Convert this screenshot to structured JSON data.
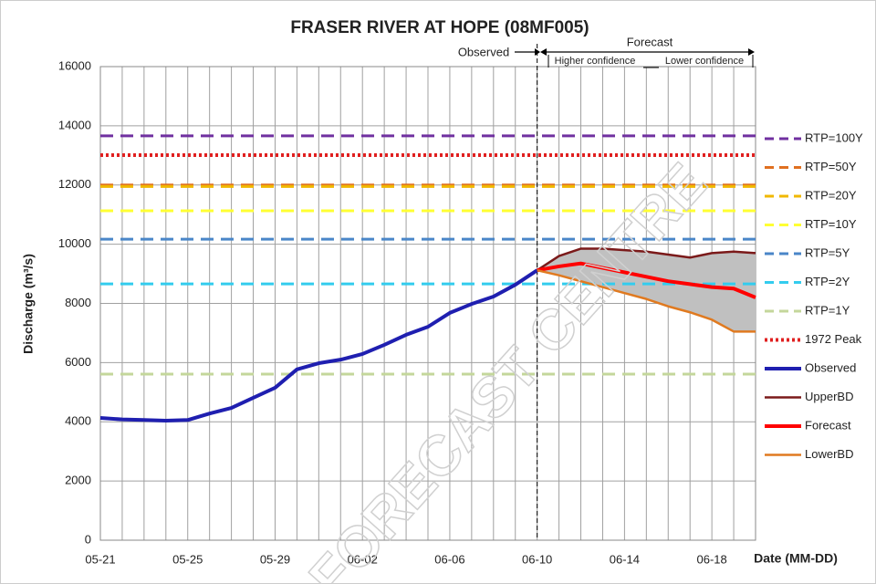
{
  "chart_data": {
    "type": "line",
    "title": "FRASER RIVER AT HOPE (08MF005)",
    "y_label": "Discharge (m³/s)",
    "x_label": "Date (MM-DD)",
    "annotations": {
      "observed": "Observed",
      "forecast": "Forecast",
      "higher": "Higher confidence",
      "lower": "Lower confidence"
    },
    "watermark": "FORECAST CENTRE",
    "categories": [
      "05-21",
      null,
      null,
      null,
      "05-25",
      null,
      null,
      null,
      "05-29",
      null,
      null,
      null,
      "06-02",
      null,
      null,
      null,
      "06-06",
      null,
      null,
      null,
      "06-10",
      null,
      null,
      null,
      "06-14",
      null,
      null,
      null,
      "06-18",
      null,
      null
    ],
    "ylim": [
      0,
      16000
    ],
    "yticks": [
      0,
      2000,
      4000,
      6000,
      8000,
      10000,
      12000,
      14000,
      16000
    ],
    "grid": true,
    "band_color": "#c0c0c0",
    "thresholds": [
      {
        "name": "RTP=100Y",
        "value": 13660,
        "color": "#7030a0",
        "style": "dashed"
      },
      {
        "name": "RTP=50Y",
        "value": 12000,
        "color": "#e07020",
        "style": "dashed"
      },
      {
        "name": "RTP=20Y",
        "value": 11950,
        "color": "#f0b800",
        "style": "dashed"
      },
      {
        "name": "RTP=10Y",
        "value": 11130,
        "color": "#ffff33",
        "style": "dashed"
      },
      {
        "name": "RTP=5Y",
        "value": 10170,
        "color": "#4a86c8",
        "style": "dashed"
      },
      {
        "name": "RTP=2Y",
        "value": 8660,
        "color": "#33ccee",
        "style": "dashed"
      },
      {
        "name": "RTP=1Y",
        "value": 5610,
        "color": "#c4d79b",
        "style": "dashed"
      },
      {
        "name": "1972 Peak",
        "value": 13010,
        "color": "#e02020",
        "style": "dotted"
      }
    ],
    "series": [
      {
        "name": "Observed",
        "color": "#1f1fb0",
        "width": 4,
        "values": [
          4130,
          4080,
          4060,
          4040,
          4060,
          4280,
          4470,
          4810,
          5150,
          5770,
          5980,
          6100,
          6290,
          6600,
          6940,
          7210,
          7680,
          7980,
          8230,
          8630,
          9120,
          null,
          null,
          null,
          null,
          null,
          null,
          null,
          null,
          null,
          null
        ]
      },
      {
        "name": "UpperBD",
        "color": "#7b1a1a",
        "width": 2.5,
        "role": "upper",
        "values": [
          null,
          null,
          null,
          null,
          null,
          null,
          null,
          null,
          null,
          null,
          null,
          null,
          null,
          null,
          null,
          null,
          null,
          null,
          null,
          null,
          9120,
          9600,
          9850,
          9850,
          9800,
          9750,
          9650,
          9550,
          9700,
          9750,
          9700
        ]
      },
      {
        "name": "Forecast",
        "color": "#ff0000",
        "width": 4,
        "values": [
          null,
          null,
          null,
          null,
          null,
          null,
          null,
          null,
          null,
          null,
          null,
          null,
          null,
          null,
          null,
          null,
          null,
          null,
          null,
          null,
          9120,
          9250,
          9350,
          9200,
          9050,
          8900,
          8750,
          8650,
          8550,
          8500,
          8200
        ]
      },
      {
        "name": "LowerBD",
        "color": "#e07a20",
        "width": 2.5,
        "role": "lower",
        "values": [
          null,
          null,
          null,
          null,
          null,
          null,
          null,
          null,
          null,
          null,
          null,
          null,
          null,
          null,
          null,
          null,
          null,
          null,
          null,
          null,
          9120,
          8950,
          8750,
          8550,
          8350,
          8150,
          7900,
          7700,
          7450,
          7050,
          7050
        ]
      }
    ]
  }
}
